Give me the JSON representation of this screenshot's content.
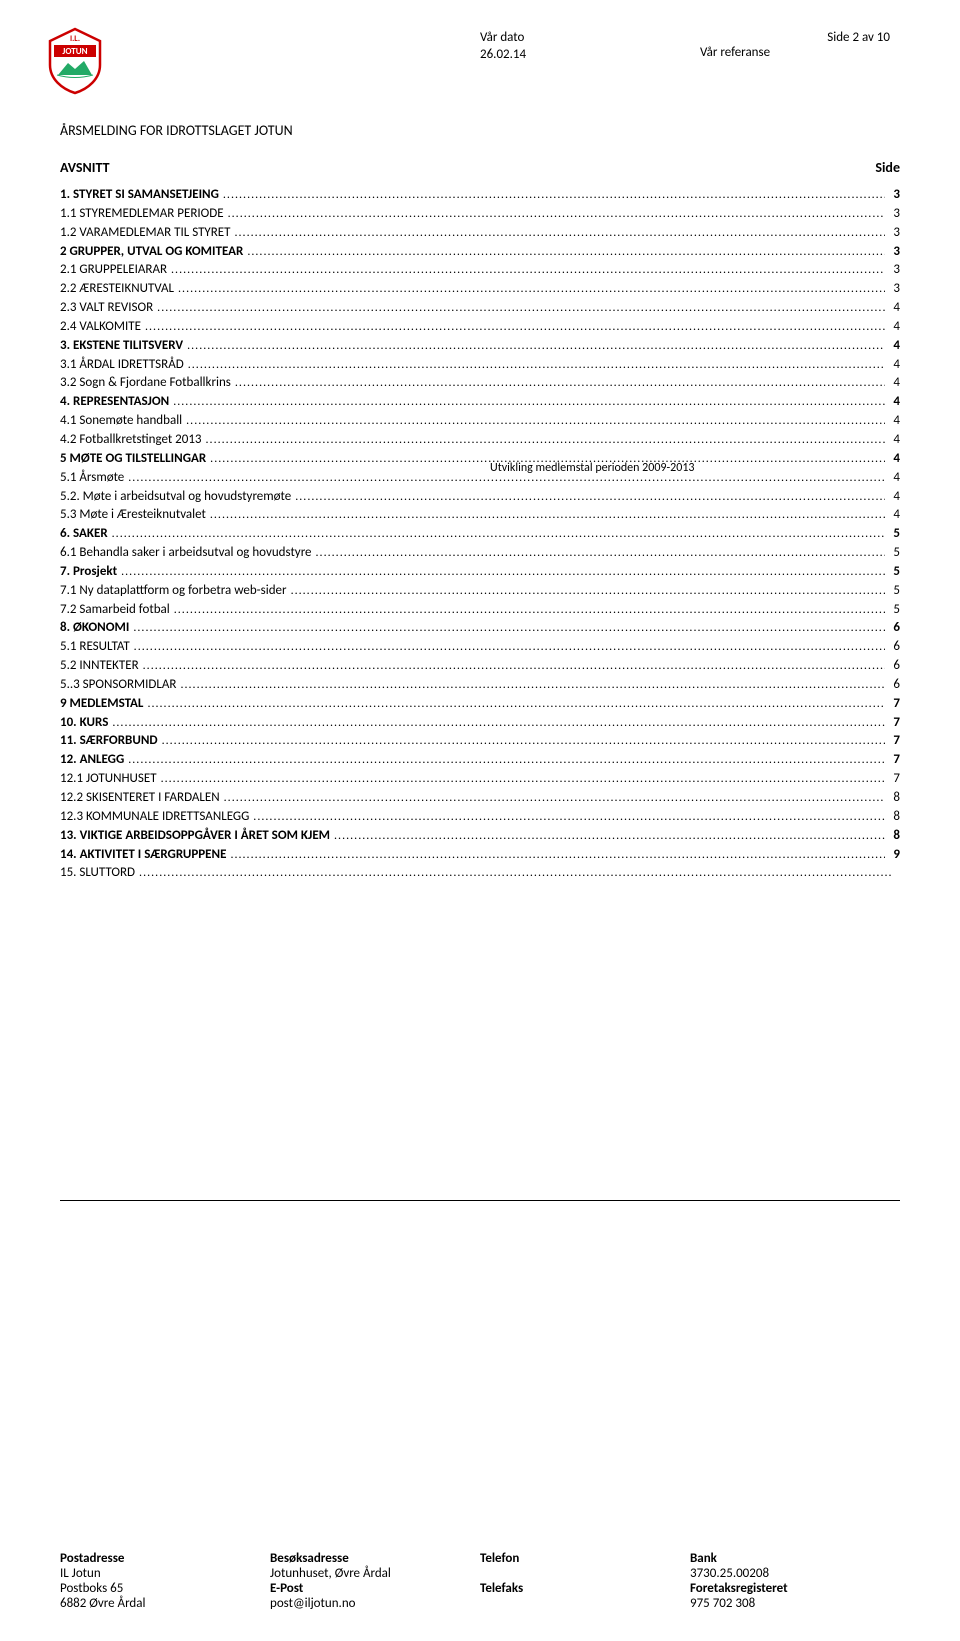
{
  "header": {
    "page_indicator": "Side 2 av 10",
    "col_center_label": "Vår dato",
    "col_center_value": "26.02.14",
    "col_right_label": "Vår referanse"
  },
  "logo_text_top": "I.L.",
  "logo_text_mid": "JOTUN",
  "title": "ÅRSMELDING FOR IDROTTSLAGET JOTUN",
  "section_heading_left": "AVSNITT",
  "section_heading_right": "Side",
  "overlay_note": "Utvikling medlemstal perioden 2009-2013",
  "toc": [
    {
      "label": "1. STYRET SI SAMANSETJEING",
      "page": "3",
      "bold": true
    },
    {
      "label": "1.1 STYREMEDLEMAR PERIODE",
      "page": "3",
      "bold": false
    },
    {
      "label": "1.2 VARAMEDLEMAR TIL STYRET",
      "page": "3",
      "bold": false
    },
    {
      "label": "2 GRUPPER, UTVAL OG KOMITEAR",
      "page": "3",
      "bold": true
    },
    {
      "label": "2.1 GRUPPELEIARAR",
      "page": "3",
      "bold": false
    },
    {
      "label": "2.2 ÆRESTEIKNUTVAL",
      "page": "3",
      "bold": false
    },
    {
      "label": "2.3 VALT REVISOR",
      "page": "4",
      "bold": false
    },
    {
      "label": "2.4 VALKOMITE",
      "page": "4",
      "bold": false
    },
    {
      "label": "3. EKSTENE TILITSVERV",
      "page": "4",
      "bold": true
    },
    {
      "label": "3.1 ÅRDAL IDRETTSRÅD",
      "page": "4",
      "bold": false
    },
    {
      "label": "3.2 Sogn & Fjordane Fotballkrins",
      "page": "4",
      "bold": false
    },
    {
      "label": "4. REPRESENTASJON",
      "page": "4",
      "bold": true
    },
    {
      "label": "4.1 Sonemøte handball",
      "page": "4",
      "bold": false
    },
    {
      "label": "4.2 Fotballkretstinget 2013",
      "page": "4",
      "bold": false
    },
    {
      "label": "5 MØTE OG TILSTELLINGAR",
      "page": "4",
      "bold": true
    },
    {
      "label": "5.1 Årsmøte",
      "page": "4",
      "bold": false
    },
    {
      "label": "5.2. Møte i arbeidsutval og hovudstyremøte",
      "page": "4",
      "bold": false
    },
    {
      "label": "5.3 Møte i Æresteiknutvalet",
      "page": "4",
      "bold": false
    },
    {
      "label": "6. SAKER",
      "page": "5",
      "bold": true
    },
    {
      "label": "6.1 Behandla saker i arbeidsutval og hovudstyre",
      "page": "5",
      "bold": false
    },
    {
      "label": "7. Prosjekt",
      "page": "5",
      "bold": true
    },
    {
      "label": "7.1 Ny dataplattform og forbetra web-sider",
      "page": "5",
      "bold": false
    },
    {
      "label": "7.2 Samarbeid fotbal",
      "page": "5",
      "bold": false
    },
    {
      "label": "8. ØKONOMI",
      "page": "6",
      "bold": true
    },
    {
      "label": "5.1 RESULTAT",
      "page": "6",
      "bold": false
    },
    {
      "label": "5.2 INNTEKTER",
      "page": "6",
      "bold": false
    },
    {
      "label": "5..3 SPONSORMIDLAR",
      "page": "6",
      "bold": false
    },
    {
      "label": "9 MEDLEMSTAL",
      "page": "7",
      "bold": true
    },
    {
      "label": "10. KURS",
      "page": "7",
      "bold": true
    },
    {
      "label": "11. SÆRFORBUND",
      "page": "7",
      "bold": true
    },
    {
      "label": "12. ANLEGG",
      "page": "7",
      "bold": true
    },
    {
      "label": "12.1 JOTUNHUSET",
      "page": "7",
      "bold": false
    },
    {
      "label": "12.2 SKISENTERET I FARDALEN",
      "page": "8",
      "bold": false
    },
    {
      "label": "12.3 KOMMUNALE IDRETTSANLEGG",
      "page": "8",
      "bold": false
    },
    {
      "label": "13. VIKTIGE ARBEIDSOPPGÅVER I ÅRET SOM KJEM",
      "page": "8",
      "bold": true
    },
    {
      "label": "14. AKTIVITET I SÆRGRUPPENE",
      "page": "9",
      "bold": true
    },
    {
      "label": "15. SLUTTORD",
      "page": "",
      "bold": false
    }
  ],
  "footer": {
    "col1_hd": "Postadresse",
    "col1_l1": "IL Jotun",
    "col1_l2": "Postboks 65",
    "col1_l3": "6882 Øvre Årdal",
    "col2_hd": "Besøksadresse",
    "col2_l1": "Jotunhuset, Øvre Årdal",
    "col2_hd2": "E-Post",
    "col2_l2": "post@iljotun.no",
    "col3_hd": "Telefon",
    "col3_hd2": "Telefaks",
    "col4_hd": "Bank",
    "col4_l1": "3730.25.00208",
    "col4_hd2": "Foretaksregisteret",
    "col4_l2": "975 702 308"
  }
}
